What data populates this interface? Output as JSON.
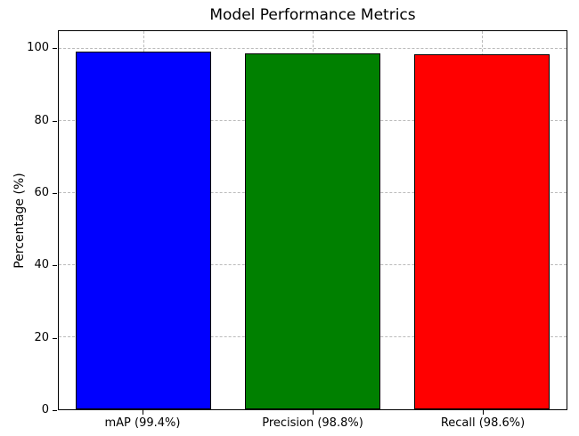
{
  "chart_data": {
    "type": "bar",
    "title": "Model Performance Metrics",
    "xlabel": "",
    "ylabel": "Percentage (%)",
    "categories": [
      "mAP (99.4%)",
      "Precision (98.8%)",
      "Recall (98.6%)"
    ],
    "values": [
      99.4,
      98.8,
      98.6
    ],
    "bar_colors": [
      "#0000ff",
      "#008000",
      "#ff0000"
    ],
    "bar_edge_color": "#000000",
    "ylim": [
      0,
      105
    ],
    "yticks": [
      0,
      20,
      40,
      60,
      80,
      100
    ],
    "grid": true,
    "grid_style": "dashed",
    "legend": "none",
    "background_color": "#ffffff"
  }
}
